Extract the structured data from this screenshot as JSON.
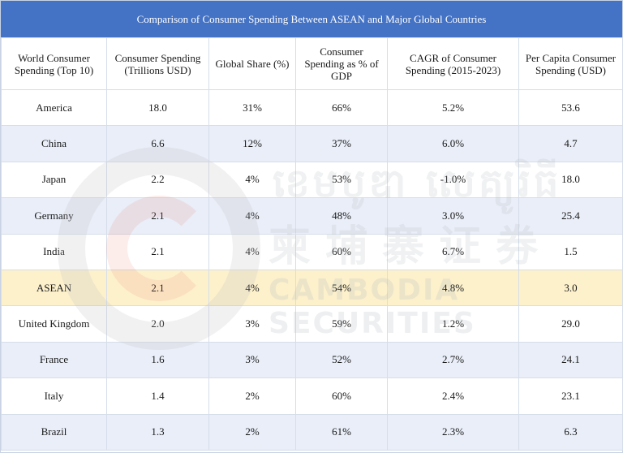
{
  "title": "Comparison of Consumer Spending Between ASEAN and Major Global Countries",
  "headers": [
    "World Consumer Spending (Top 10)",
    "Consumer Spending (Trillions USD)",
    "Global Share (%)",
    "Consumer Spending as % of GDP",
    "CAGR of Consumer Spending (2015-2023)",
    "Per Capita Consumer Spending (USD)"
  ],
  "rows": [
    [
      "America",
      "18.0",
      "31%",
      "66%",
      "5.2%",
      "53.6"
    ],
    [
      "China",
      "6.6",
      "12%",
      "37%",
      "6.0%",
      "4.7"
    ],
    [
      "Japan",
      "2.2",
      "4%",
      "53%",
      "-1.0%",
      "18.0"
    ],
    [
      "Germany",
      "2.1",
      "4%",
      "48%",
      "3.0%",
      "25.4"
    ],
    [
      "India",
      "2.1",
      "4%",
      "60%",
      "6.7%",
      "1.5"
    ],
    [
      "ASEAN",
      "2.1",
      "4%",
      "54%",
      "4.8%",
      "3.0"
    ],
    [
      "United Kingdom",
      "2.0",
      "3%",
      "59%",
      "1.2%",
      "29.0"
    ],
    [
      "France",
      "1.6",
      "3%",
      "52%",
      "2.7%",
      "24.1"
    ],
    [
      "Italy",
      "1.4",
      "2%",
      "60%",
      "2.4%",
      "23.1"
    ],
    [
      "Brazil",
      "1.3",
      "2%",
      "61%",
      "2.3%",
      "6.3"
    ]
  ],
  "highlight_row": "ASEAN",
  "watermark": {
    "khmer": "ខេមបូឌា សេគ្យូរិធី",
    "chinese": "柬埔寨证券",
    "english": "CAMBODIA SECURITIES"
  },
  "colors": {
    "header_bg": "#4472c4",
    "alt_row_bg": "#e9eef8",
    "highlight_bg": "#fdf1cc"
  }
}
